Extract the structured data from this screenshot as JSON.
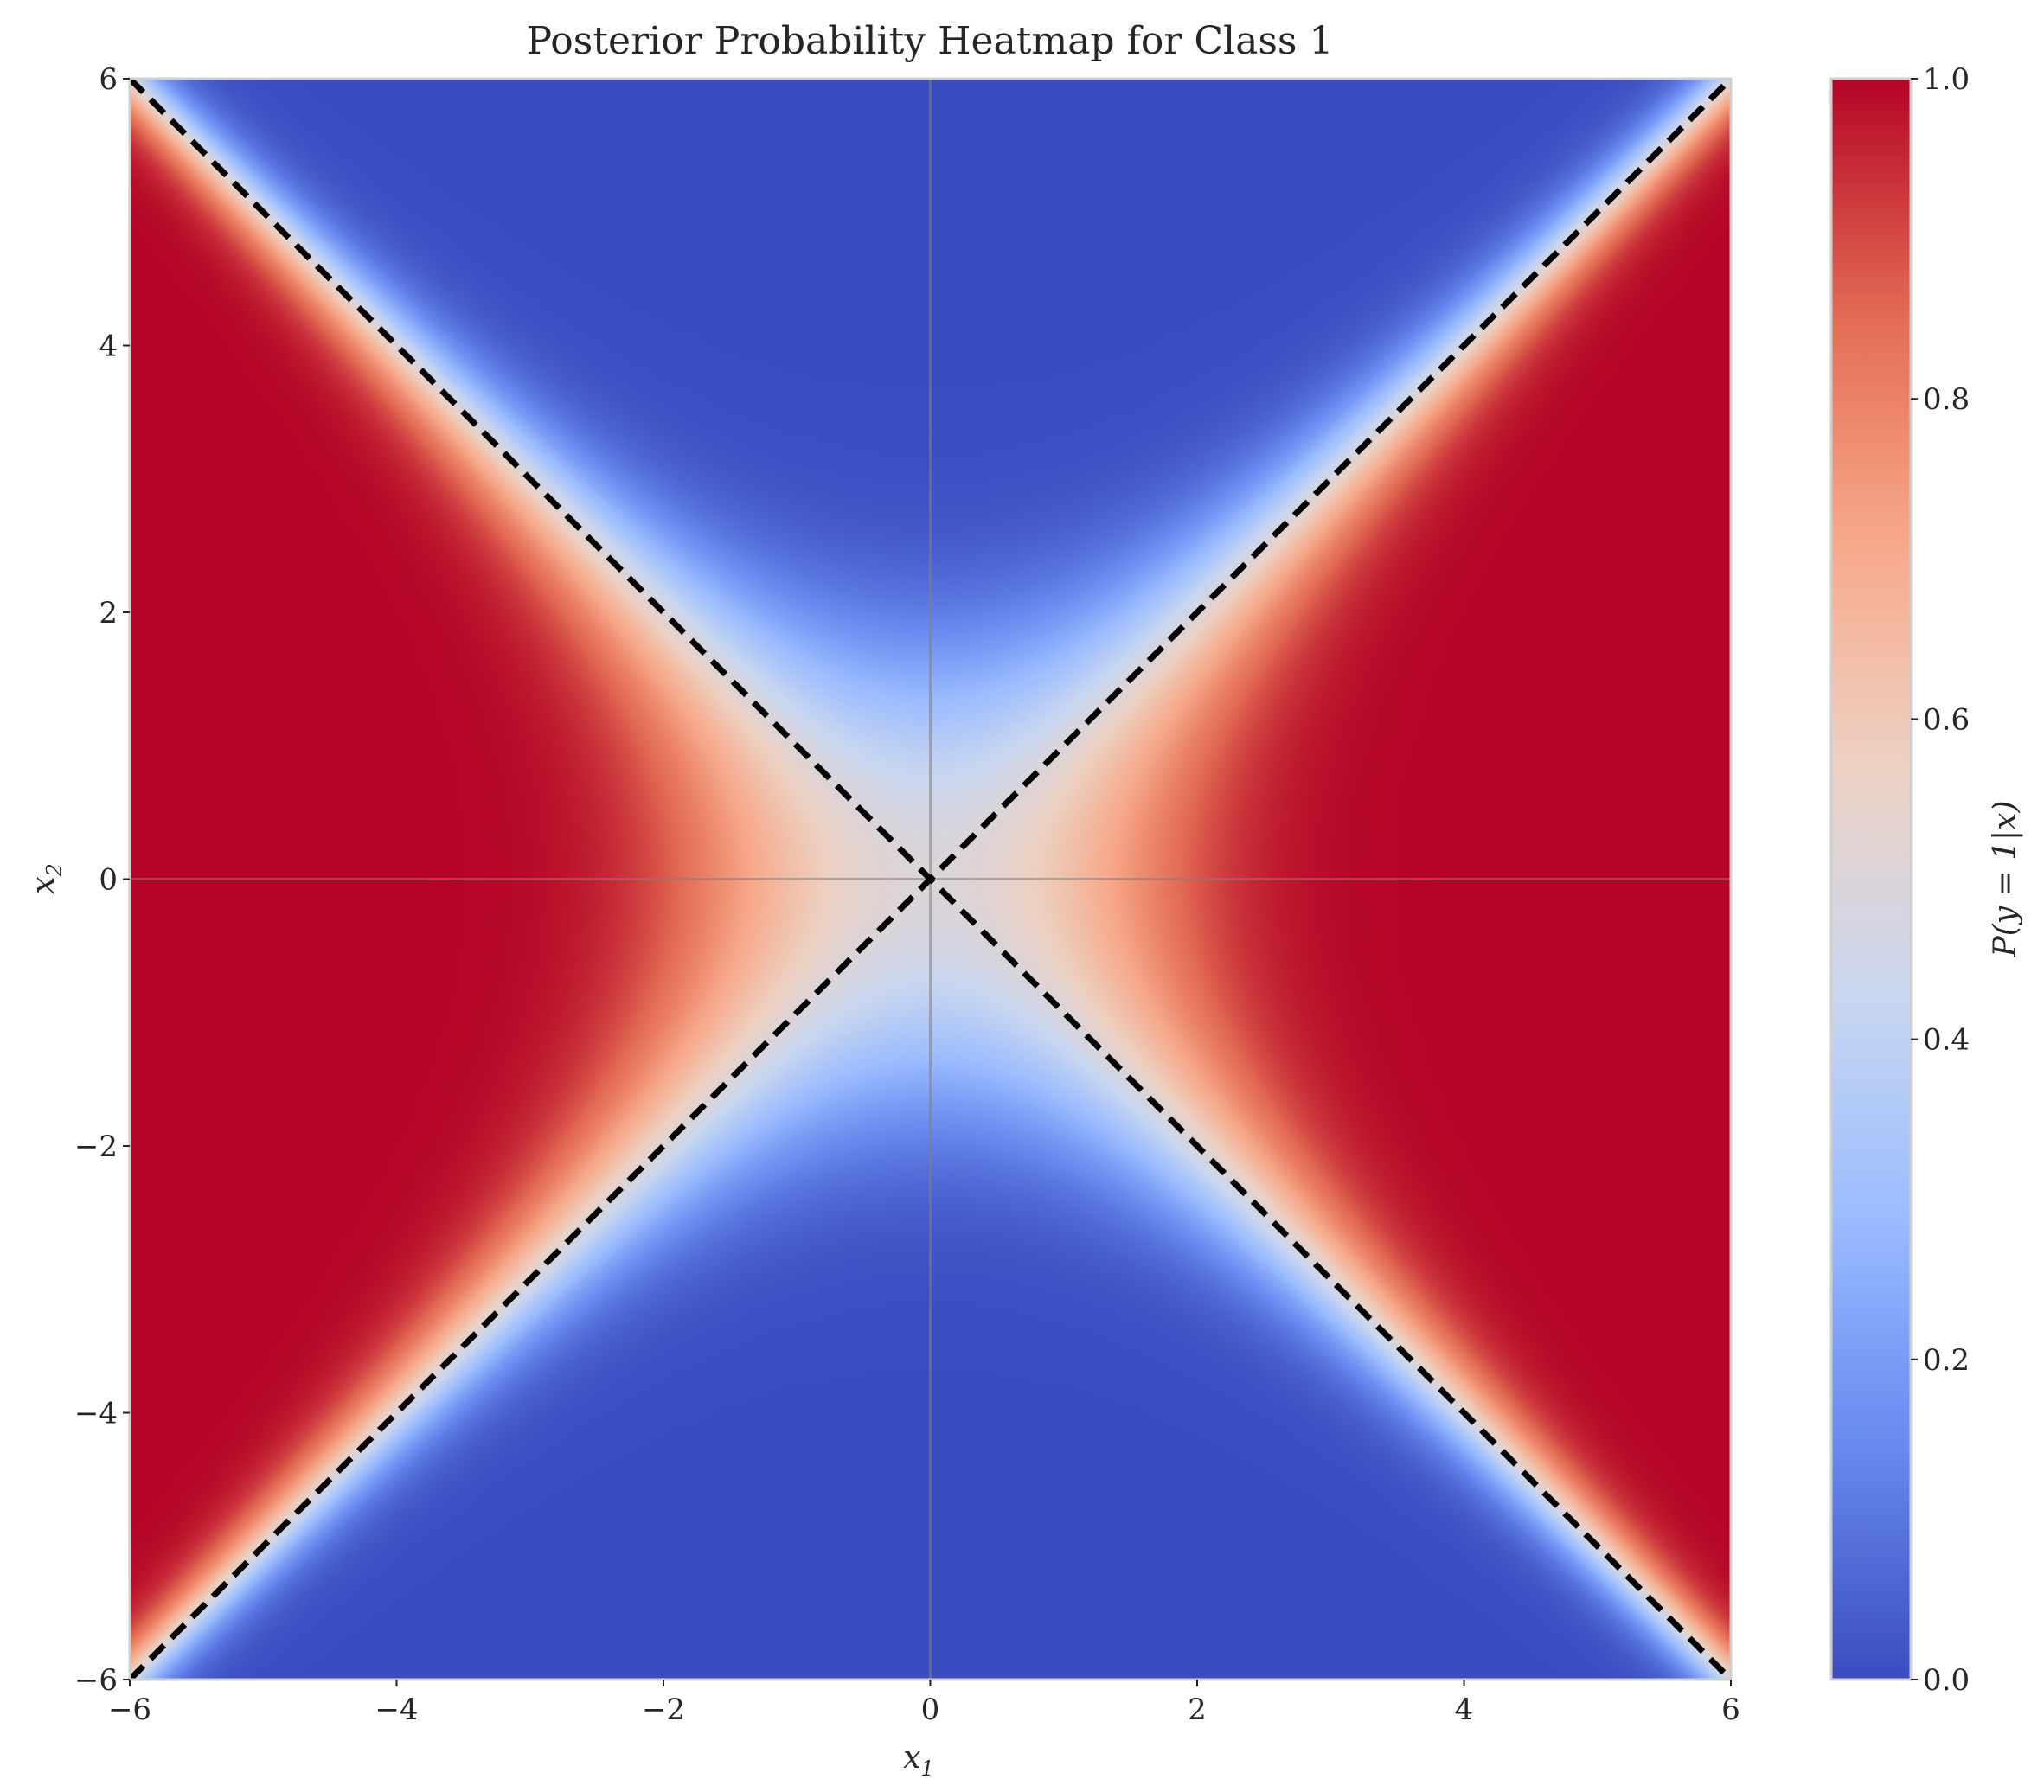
{
  "chart_data": {
    "type": "heatmap",
    "title": "Posterior Probability Heatmap for Class 1",
    "xlabel_main": "x",
    "xlabel_sub": "1",
    "ylabel_main": "x",
    "ylabel_sub": "2",
    "colorbar_label": "P(y = 1|x)",
    "xlim": [
      -6,
      6
    ],
    "ylim": [
      -6,
      6
    ],
    "x_ticks": [
      -6,
      -4,
      -2,
      0,
      2,
      4,
      6
    ],
    "y_ticks": [
      -6,
      -4,
      -2,
      0,
      2,
      4,
      6
    ],
    "x_tick_labels": [
      "−6",
      "−4",
      "−2",
      "0",
      "2",
      "4",
      "6"
    ],
    "y_tick_labels": [
      "−6",
      "−4",
      "−2",
      "0",
      "2",
      "4",
      "6"
    ],
    "colorbar_ticks": [
      0.0,
      0.2,
      0.4,
      0.6,
      0.8,
      1.0
    ],
    "colorbar_tick_labels": [
      "0.0",
      "0.2",
      "0.4",
      "0.6",
      "0.8",
      "1.0"
    ],
    "clim": [
      0,
      1
    ],
    "colormap": "coolwarm",
    "colormap_stops": [
      "#3b4cc0",
      "#6788ee",
      "#9abbff",
      "#c9d7f0",
      "#edd1c2",
      "#f7a889",
      "#e26952",
      "#b40426"
    ],
    "surface": "P = sigmoid(0.5 * (x1^2 - x2^2))",
    "decision_boundaries": [
      {
        "equation": "x2 = x1",
        "style": "dashed",
        "color": "#000000"
      },
      {
        "equation": "x2 = -x1",
        "style": "dashed",
        "color": "#000000"
      }
    ],
    "reference_lines": [
      {
        "equation": "x1 = 0",
        "color": "#808080"
      },
      {
        "equation": "x2 = 0",
        "color": "#808080"
      }
    ],
    "grid": false
  }
}
